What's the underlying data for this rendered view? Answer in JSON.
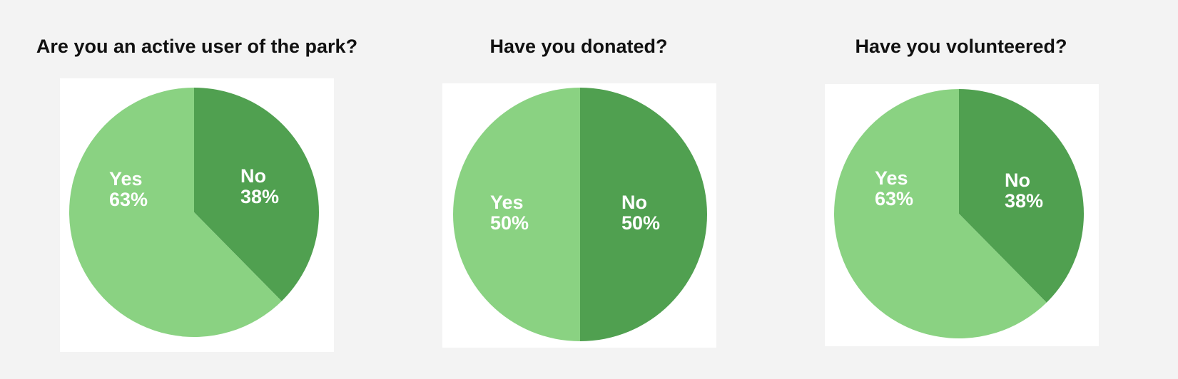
{
  "chart_data": [
    {
      "type": "pie",
      "title": "Are you an active user of the park?",
      "categories": [
        "No",
        "Yes"
      ],
      "values": [
        38,
        63
      ],
      "labels": [
        "38%",
        "63%"
      ],
      "colors": [
        "#50a050",
        "#8ad282"
      ]
    },
    {
      "type": "pie",
      "title": "Have you donated?",
      "categories": [
        "No",
        "Yes"
      ],
      "values": [
        50,
        50
      ],
      "labels": [
        "50%",
        "50%"
      ],
      "colors": [
        "#50a050",
        "#8ad282"
      ]
    },
    {
      "type": "pie",
      "title": "Have you volunteered?",
      "categories": [
        "No",
        "Yes"
      ],
      "values": [
        38,
        63
      ],
      "labels": [
        "38%",
        "63%"
      ],
      "colors": [
        "#50a050",
        "#8ad282"
      ]
    }
  ]
}
